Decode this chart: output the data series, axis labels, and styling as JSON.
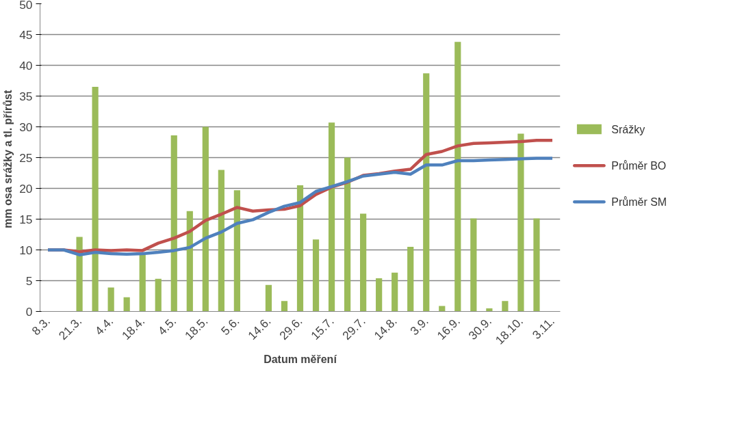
{
  "chart_data": {
    "type": "bar",
    "xlabel": "Datum měření",
    "ylabel": "mm osa srážky  a tl. přírůst",
    "categories": [
      "8.3.",
      null,
      "21.3.",
      null,
      "4.4.",
      null,
      "18.4.",
      null,
      "4.5.",
      null,
      "18.5.",
      null,
      "5.6.",
      null,
      "14.6.",
      null,
      "29.6.",
      null,
      "15.7.",
      null,
      "29.7.",
      null,
      "14.8.",
      null,
      "3.9.",
      null,
      "16.9.",
      null,
      "30.9.",
      null,
      "18.10.",
      null,
      "3.11."
    ],
    "series": [
      {
        "name": "Srážky",
        "color": "#9bbb59",
        "values": [
          null,
          null,
          12.1,
          36.5,
          3.9,
          2.3,
          9.2,
          5.3,
          28.6,
          16.3,
          30.0,
          23.0,
          19.7,
          null,
          4.3,
          1.7,
          20.5,
          11.7,
          30.7,
          25.0,
          15.9,
          5.4,
          6.3,
          10.5,
          38.7,
          0.9,
          43.8,
          15.1,
          0.5,
          1.7,
          28.9,
          15.1,
          null
        ]
      },
      {
        "name": "Průměr BO",
        "type": "line",
        "color": "#c0504d",
        "values": [
          10,
          10,
          9.7,
          10,
          9.9,
          10,
          9.9,
          11.1,
          11.9,
          13,
          14.8,
          15.8,
          16.9,
          16.3,
          16.5,
          16.6,
          17.2,
          19,
          20.2,
          21,
          22.1,
          22.4,
          22.8,
          23.1,
          25.5,
          26,
          26.9,
          27.3,
          27.4,
          27.5,
          27.6,
          27.8,
          27.8
        ]
      },
      {
        "name": "Průměr SM",
        "type": "line",
        "color": "#4f81bd",
        "values": [
          10,
          10,
          9.2,
          9.6,
          9.4,
          9.3,
          9.4,
          9.6,
          9.9,
          10.4,
          11.9,
          12.9,
          14.3,
          14.9,
          16.1,
          17.1,
          17.7,
          19.5,
          20.3,
          21.1,
          22,
          22.3,
          22.6,
          22.3,
          23.8,
          23.8,
          24.5,
          24.5,
          24.6,
          24.7,
          24.8,
          24.9,
          24.9
        ]
      }
    ],
    "ylim": [
      0,
      50
    ],
    "yticks": [
      0,
      5,
      10,
      15,
      20,
      25,
      30,
      35,
      40,
      45,
      50
    ],
    "grid": "y",
    "legend": "right",
    "marker": "none",
    "line_style": "solid"
  }
}
